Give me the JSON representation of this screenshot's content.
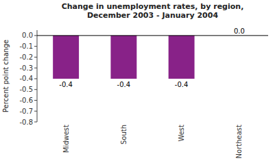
{
  "chart_data": {
    "type": "bar",
    "title": "Change in unemployment rates, by region,\nDecember 2003 - January 2004",
    "ylabel": "Percent point change",
    "categories": [
      "Midwest",
      "South",
      "West",
      "Northeast"
    ],
    "values": [
      -0.4,
      -0.4,
      -0.4,
      0.0
    ],
    "value_labels": [
      "-0.4",
      "-0.4",
      "-0.4",
      "0.0"
    ],
    "data_labels": true,
    "color": "#882288",
    "ylim": [
      -0.8,
      0.05
    ],
    "yticks": [
      {
        "value": 0.0,
        "label": "0.0"
      },
      -0.1,
      -0.2,
      -0.3,
      -0.4,
      -0.5,
      -0.6,
      -0.7,
      -0.8
    ],
    "grid": false
  }
}
